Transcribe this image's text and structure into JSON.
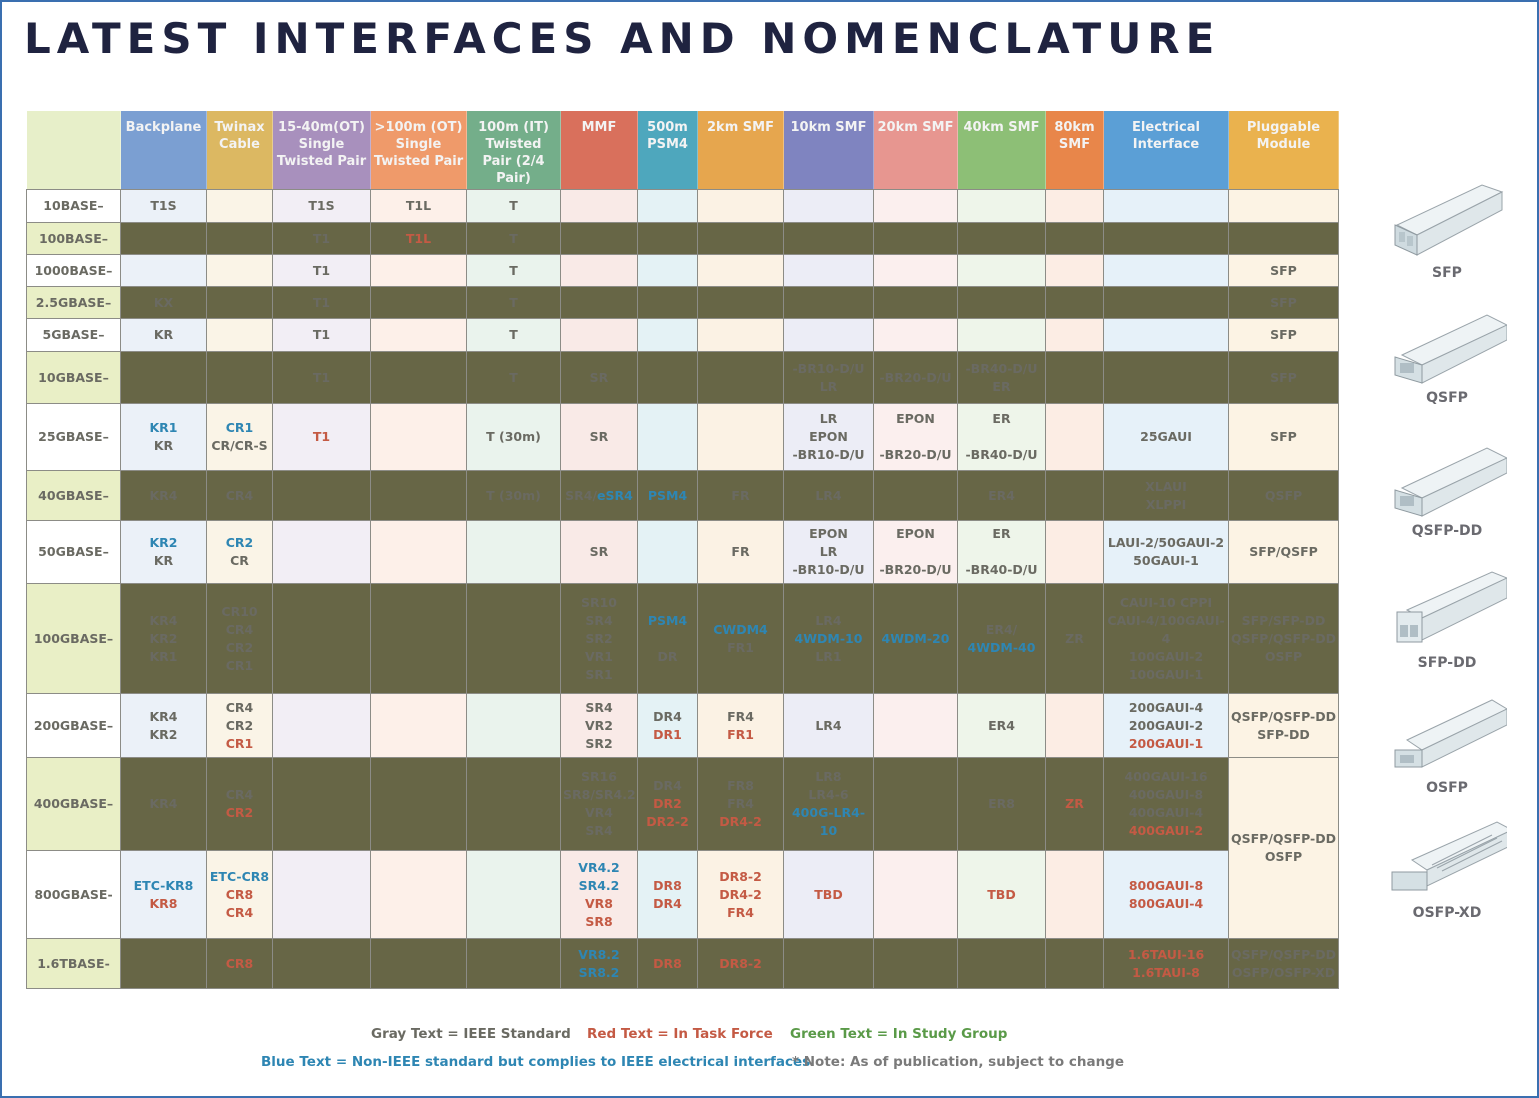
{
  "title": "LATEST INTERFACES AND NOMENCLATURE",
  "colors": {
    "gray_text": "#6a6a62",
    "red_text": "#c45a44",
    "green_text": "#5a9a48",
    "blue_text": "#2e86b3",
    "frame_border": "#3a6fb0",
    "title_color": "#1f2340"
  },
  "columns": [
    {
      "label": "Backplane",
      "color": "#7b9fd2"
    },
    {
      "label": "Twinax Cable",
      "color": "#dcb862"
    },
    {
      "label": "15-40m(OT) Single Twisted Pair",
      "color": "#a890bd"
    },
    {
      "label": ">100m (OT) Single Twisted Pair",
      "color": "#ef9a6a"
    },
    {
      "label": "100m (IT) Twisted Pair (2/4 Pair)",
      "color": "#74ae8a"
    },
    {
      "label": "MMF",
      "color": "#d9705c"
    },
    {
      "label": "500m PSM4",
      "color": "#4ea7bd"
    },
    {
      "label": "2km SMF",
      "color": "#e6a64e"
    },
    {
      "label": "10km SMF",
      "color": "#7f84c0"
    },
    {
      "label": "20km SMF",
      "color": "#e79690"
    },
    {
      "label": "40km SMF",
      "color": "#8dbf76"
    },
    {
      "label": "80km SMF",
      "color": "#e8864a"
    },
    {
      "label": "Electrical Interface",
      "color": "#5b9fd6"
    },
    {
      "label": "Pluggable Module",
      "color": "#eab24e"
    }
  ],
  "rows": [
    {
      "label": "10BASE–",
      "cells": [
        [
          [
            "T1S",
            "g"
          ]
        ],
        [],
        [
          [
            "T1S",
            "g"
          ]
        ],
        [
          [
            "T1L",
            "g"
          ]
        ],
        [
          [
            "T",
            "g"
          ]
        ],
        [],
        [],
        [],
        [],
        [],
        [],
        [],
        [],
        []
      ]
    },
    {
      "label": "100BASE–",
      "cells": [
        [],
        [],
        [
          [
            "T1",
            "g"
          ]
        ],
        [
          [
            "T1L",
            "r"
          ]
        ],
        [
          [
            "T",
            "g"
          ]
        ],
        [],
        [],
        [],
        [],
        [],
        [],
        [],
        [],
        []
      ]
    },
    {
      "label": "1000BASE–",
      "cells": [
        [],
        [],
        [
          [
            "T1",
            "g"
          ]
        ],
        [],
        [
          [
            "T",
            "g"
          ]
        ],
        [],
        [],
        [],
        [],
        [],
        [],
        [],
        [],
        [
          [
            "SFP",
            "g"
          ]
        ]
      ]
    },
    {
      "label": "2.5GBASE–",
      "cells": [
        [
          [
            "KX",
            "g"
          ]
        ],
        [],
        [
          [
            "T1",
            "g"
          ]
        ],
        [],
        [
          [
            "T",
            "g"
          ]
        ],
        [],
        [],
        [],
        [],
        [],
        [],
        [],
        [],
        [
          [
            "SFP",
            "g"
          ]
        ]
      ]
    },
    {
      "label": "5GBASE–",
      "cells": [
        [
          [
            "KR",
            "g"
          ]
        ],
        [],
        [
          [
            "T1",
            "g"
          ]
        ],
        [],
        [
          [
            "T",
            "g"
          ]
        ],
        [],
        [],
        [],
        [],
        [],
        [],
        [],
        [],
        [
          [
            "SFP",
            "g"
          ]
        ]
      ]
    },
    {
      "label": "10GBASE–",
      "cells": [
        [],
        [],
        [
          [
            "T1",
            "g"
          ]
        ],
        [],
        [
          [
            "T",
            "g"
          ]
        ],
        [
          [
            "SR",
            "g"
          ]
        ],
        [],
        [],
        [
          [
            "-BR10-D/U",
            "g"
          ],
          [
            "LR",
            "g"
          ]
        ],
        [
          [
            "-BR20-D/U",
            "g"
          ]
        ],
        [
          [
            "-BR40-D/U",
            "g"
          ],
          [
            "ER",
            "g"
          ]
        ],
        [],
        [],
        [
          [
            "SFP",
            "g"
          ]
        ]
      ]
    },
    {
      "label": "25GBASE–",
      "cells": [
        [
          [
            "KR1",
            "b"
          ],
          [
            "KR",
            "g"
          ]
        ],
        [
          [
            "CR1",
            "b"
          ],
          [
            "CR/CR-S",
            "g"
          ]
        ],
        [
          [
            "T1",
            "r"
          ]
        ],
        [],
        [
          [
            "T (30m)",
            "g"
          ]
        ],
        [
          [
            "SR",
            "g"
          ]
        ],
        [],
        [],
        [
          [
            "LR",
            "g"
          ],
          [
            "EPON",
            "g"
          ],
          [
            "-BR10-D/U",
            "g"
          ]
        ],
        [
          [
            "EPON",
            "g"
          ],
          [
            "",
            ""
          ],
          [
            "-BR20-D/U",
            "g"
          ]
        ],
        [
          [
            "ER",
            "g"
          ],
          [
            "",
            ""
          ],
          [
            "-BR40-D/U",
            "g"
          ]
        ],
        [],
        [
          [
            "25GAUI",
            "g"
          ]
        ],
        [
          [
            "SFP",
            "g"
          ]
        ]
      ]
    },
    {
      "label": "40GBASE–",
      "cells": [
        [
          [
            "KR4",
            "g"
          ]
        ],
        [
          [
            "CR4",
            "g"
          ]
        ],
        [],
        [],
        [
          [
            "T (30m)",
            "g"
          ]
        ],
        [
          [
            "SR4/",
            "g",
            "inline"
          ],
          [
            "eSR4",
            "b"
          ]
        ],
        [
          [
            "PSM4",
            "b"
          ]
        ],
        [
          [
            "FR",
            "g"
          ]
        ],
        [
          [
            "LR4",
            "g"
          ]
        ],
        [],
        [
          [
            "ER4",
            "g"
          ]
        ],
        [],
        [
          [
            "XLAUI",
            "g"
          ],
          [
            "XLPPI",
            "g"
          ]
        ],
        [
          [
            "QSFP",
            "g"
          ]
        ]
      ]
    },
    {
      "label": "50GBASE–",
      "cells": [
        [
          [
            "KR2",
            "b"
          ],
          [
            "KR",
            "g"
          ]
        ],
        [
          [
            "CR2",
            "b"
          ],
          [
            "CR",
            "g"
          ]
        ],
        [],
        [],
        [],
        [
          [
            "SR",
            "g"
          ]
        ],
        [],
        [
          [
            "FR",
            "g"
          ]
        ],
        [
          [
            "EPON",
            "g"
          ],
          [
            "LR",
            "g"
          ],
          [
            "-BR10-D/U",
            "g"
          ]
        ],
        [
          [
            "EPON",
            "g"
          ],
          [
            "",
            ""
          ],
          [
            "-BR20-D/U",
            "g"
          ]
        ],
        [
          [
            "ER",
            "g"
          ],
          [
            "",
            ""
          ],
          [
            "-BR40-D/U",
            "g"
          ]
        ],
        [],
        [
          [
            "LAUI-2/50GAUI-2",
            "g"
          ],
          [
            "50GAUI-1",
            "g"
          ]
        ],
        [
          [
            "SFP/QSFP",
            "g"
          ]
        ]
      ]
    },
    {
      "label": "100GBASE–",
      "cells": [
        [
          [
            "KR4",
            "g"
          ],
          [
            "KR2",
            "g"
          ],
          [
            "KR1",
            "g"
          ]
        ],
        [
          [
            "CR10",
            "g"
          ],
          [
            "CR4",
            "g"
          ],
          [
            "CR2",
            "g"
          ],
          [
            "CR1",
            "g"
          ]
        ],
        [],
        [],
        [],
        [
          [
            "SR10",
            "g"
          ],
          [
            "SR4",
            "g"
          ],
          [
            "SR2",
            "g"
          ],
          [
            "VR1",
            "g"
          ],
          [
            "SR1",
            "g"
          ]
        ],
        [
          [
            "PSM4",
            "b"
          ],
          [
            "",
            ""
          ],
          [
            "DR",
            "g"
          ]
        ],
        [
          [
            "CWDM4",
            "b"
          ],
          [
            "FR1",
            "g"
          ]
        ],
        [
          [
            "LR4",
            "g"
          ],
          [
            "4WDM-10",
            "b"
          ],
          [
            "LR1",
            "g"
          ]
        ],
        [
          [
            "4WDM-20",
            "b"
          ]
        ],
        [
          [
            "ER4/",
            "g"
          ],
          [
            "4WDM-40",
            "b"
          ]
        ],
        [
          [
            "ZR",
            "g"
          ]
        ],
        [
          [
            "CAUI-10 CPPI",
            "g"
          ],
          [
            "CAUI-4/100GAUI-4",
            "g"
          ],
          [
            "100GAUI-2",
            "g"
          ],
          [
            "100GAUI-1",
            "g"
          ]
        ],
        [
          [
            "SFP/SFP-DD",
            "g"
          ],
          [
            "QSFP/QSFP-DD",
            "g"
          ],
          [
            "OSFP",
            "g"
          ]
        ]
      ]
    },
    {
      "label": "200GBASE–",
      "cells": [
        [
          [
            "KR4",
            "g"
          ],
          [
            "KR2",
            "g"
          ]
        ],
        [
          [
            "CR4",
            "g"
          ],
          [
            "CR2",
            "g"
          ],
          [
            "CR1",
            "r"
          ]
        ],
        [],
        [],
        [],
        [
          [
            "SR4",
            "g"
          ],
          [
            "VR2",
            "g"
          ],
          [
            "SR2",
            "g"
          ]
        ],
        [
          [
            "DR4",
            "g"
          ],
          [
            "DR1",
            "r"
          ]
        ],
        [
          [
            "FR4",
            "g"
          ],
          [
            "FR1",
            "r"
          ]
        ],
        [
          [
            "LR4",
            "g"
          ]
        ],
        [],
        [
          [
            "ER4",
            "g"
          ]
        ],
        [],
        [
          [
            "200GAUI-4",
            "g"
          ],
          [
            "200GAUI-2",
            "g"
          ],
          [
            "200GAUI-1",
            "r"
          ]
        ],
        [
          [
            "QSFP/QSFP-DD",
            "g"
          ],
          [
            "SFP-DD",
            "g"
          ]
        ]
      ]
    },
    {
      "label": "400GBASE–",
      "cells": [
        [
          [
            "KR4",
            "g"
          ]
        ],
        [
          [
            "CR4",
            "g"
          ],
          [
            "CR2",
            "r"
          ]
        ],
        [],
        [],
        [],
        [
          [
            "SR16",
            "g"
          ],
          [
            "SR8/SR4.2",
            "g"
          ],
          [
            "VR4",
            "g"
          ],
          [
            "SR4",
            "g"
          ]
        ],
        [
          [
            "DR4",
            "g"
          ],
          [
            "DR2",
            "r"
          ],
          [
            "DR2-2",
            "r"
          ]
        ],
        [
          [
            "FR8",
            "g"
          ],
          [
            "FR4",
            "g"
          ],
          [
            "DR4-2",
            "r"
          ]
        ],
        [
          [
            "LR8",
            "g"
          ],
          [
            "LR4-6",
            "g"
          ],
          [
            "400G-LR4-10",
            "b"
          ]
        ],
        [],
        [
          [
            "ER8",
            "g"
          ]
        ],
        [
          [
            "ZR",
            "r"
          ]
        ],
        [
          [
            "400GAUI-16",
            "g"
          ],
          [
            "400GAUI-8",
            "g"
          ],
          [
            "400GAUI-4",
            "g"
          ],
          [
            "400GAUI-2",
            "r"
          ]
        ],
        [
          [
            "QSFP/QSFP-DD",
            "g"
          ],
          [
            "OSFP",
            "g"
          ]
        ]
      ]
    },
    {
      "label": "800GBASE-",
      "cells": [
        [
          [
            "ETC-KR8",
            "b"
          ],
          [
            "KR8",
            "r"
          ]
        ],
        [
          [
            "ETC-CR8",
            "b"
          ],
          [
            "CR8",
            "r"
          ],
          [
            "CR4",
            "r"
          ]
        ],
        [],
        [],
        [],
        [
          [
            "VR4.2",
            "b"
          ],
          [
            "SR4.2",
            "b"
          ],
          [
            "VR8",
            "r"
          ],
          [
            "SR8",
            "r"
          ]
        ],
        [
          [
            "DR8",
            "r"
          ],
          [
            "DR4",
            "r"
          ]
        ],
        [
          [
            "DR8-2",
            "r"
          ],
          [
            "DR4-2",
            "r"
          ],
          [
            "FR4",
            "r"
          ]
        ],
        [
          [
            "TBD",
            "r"
          ]
        ],
        [],
        [
          [
            "TBD",
            "r"
          ]
        ],
        [],
        [
          [
            "800GAUI-8",
            "r"
          ],
          [
            "800GAUI-4",
            "r"
          ]
        ],
        null
      ]
    },
    {
      "label": "1.6TBASE-",
      "cells": [
        [],
        [
          [
            "CR8",
            "r"
          ]
        ],
        [],
        [],
        [],
        [
          [
            "VR8.2",
            "b"
          ],
          [
            "SR8.2",
            "b"
          ]
        ],
        [
          [
            "DR8",
            "r"
          ]
        ],
        [
          [
            "DR8-2",
            "r"
          ]
        ],
        [],
        [],
        [],
        [],
        [
          [
            "1.6TAUI-16",
            "r"
          ],
          [
            "1.6TAUI-8",
            "r"
          ]
        ],
        [
          [
            "QSFP/QSFP-DD",
            "g"
          ],
          [
            "OSFP/OSFP-XD",
            "g"
          ]
        ]
      ]
    }
  ],
  "legend": {
    "gray": "Gray Text = IEEE Standard",
    "red": "Red Text = In Task Force",
    "green": "Green Text = In Study Group",
    "blue": "Blue Text = Non-IEEE standard but complies to IEEE electrical interfaces",
    "note": "* Note: As of publication, subject to change"
  },
  "modules": [
    {
      "label": "SFP"
    },
    {
      "label": "QSFP"
    },
    {
      "label": "QSFP-DD"
    },
    {
      "label": "SFP-DD"
    },
    {
      "label": "OSFP"
    },
    {
      "label": "OSFP-XD"
    }
  ]
}
